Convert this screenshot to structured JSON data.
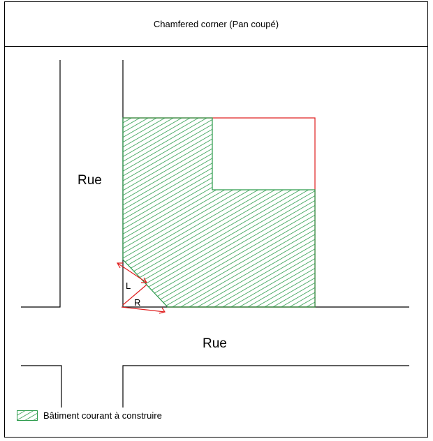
{
  "title": "Chamfered corner (Pan coupé)",
  "streets": {
    "vertical_label": "Rue",
    "horizontal_label": "Rue"
  },
  "dimensions": {
    "leg_label": "L",
    "chamfer_label": "R"
  },
  "legend": {
    "label": "Bâtiment courant à construire"
  },
  "colors": {
    "building_stroke": "#2a9a4a",
    "hatch": "#2a9a4a",
    "plot_outline": "#e02020",
    "dimension": "#e02020",
    "street": "#000000"
  }
}
